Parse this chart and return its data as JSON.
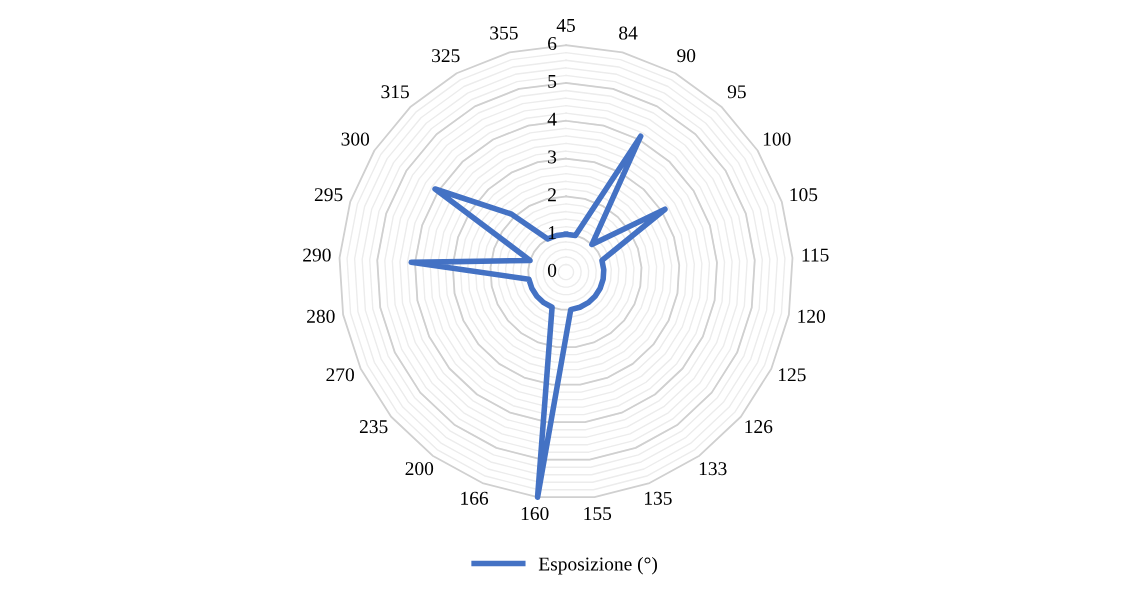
{
  "chart_data": {
    "type": "radar",
    "categories": [
      "45",
      "84",
      "90",
      "95",
      "100",
      "105",
      "115",
      "120",
      "125",
      "126",
      "133",
      "135",
      "155",
      "160",
      "166",
      "200",
      "235",
      "270",
      "280",
      "290",
      "295",
      "300",
      "315",
      "325",
      "355"
    ],
    "series": [
      {
        "name": "Esposizione (°)",
        "color": "#4472c4",
        "values": [
          1,
          1,
          4.1,
          1,
          3.1,
          1,
          1,
          1,
          1,
          1,
          1,
          1,
          1,
          6,
          1,
          1,
          1,
          1,
          1,
          4.1,
          1,
          4.1,
          2.1,
          1,
          1
        ]
      }
    ],
    "ylim": [
      0,
      6
    ],
    "yticks": [
      0,
      1,
      2,
      3,
      4,
      5,
      6
    ],
    "grid": true,
    "legend": "bottom",
    "line_style": "solid",
    "marker": "none"
  }
}
